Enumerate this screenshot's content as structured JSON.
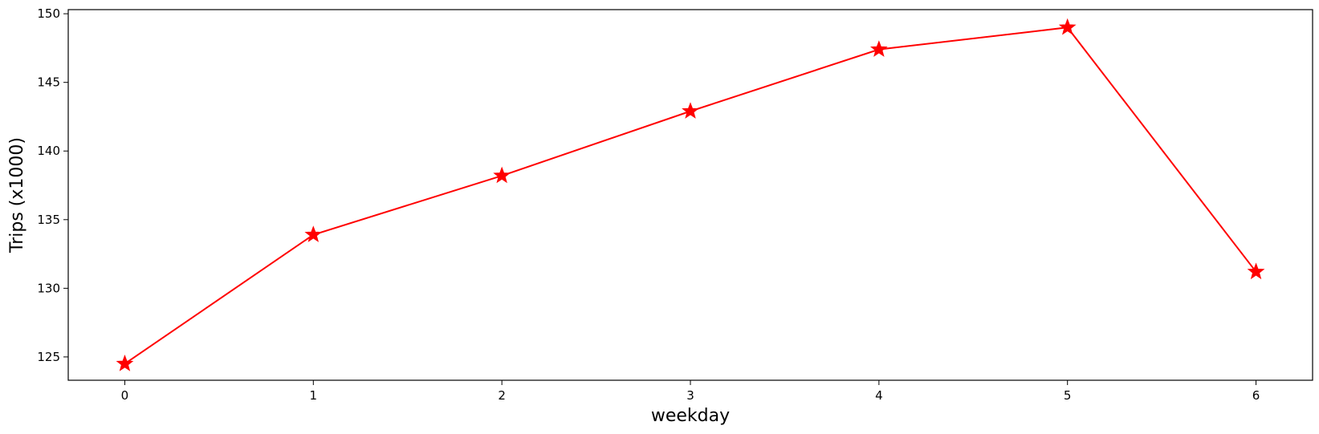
{
  "chart_data": {
    "type": "line",
    "title": "",
    "xlabel": "weekday",
    "ylabel": "Trips (x1000)",
    "x": [
      0,
      1,
      2,
      3,
      4,
      5,
      6
    ],
    "series": [
      {
        "values": [
          124.5,
          133.9,
          138.2,
          142.9,
          147.4,
          149.0,
          131.2
        ]
      }
    ],
    "xlim": [
      -0.3,
      6.3
    ],
    "ylim": [
      123.3,
      150.3
    ],
    "xticks": [
      0,
      1,
      2,
      3,
      4,
      5,
      6
    ],
    "yticks": [
      125,
      130,
      135,
      140,
      145,
      150
    ],
    "line_color": "#ff0000",
    "marker": "star",
    "grid": false,
    "legend": "none"
  }
}
